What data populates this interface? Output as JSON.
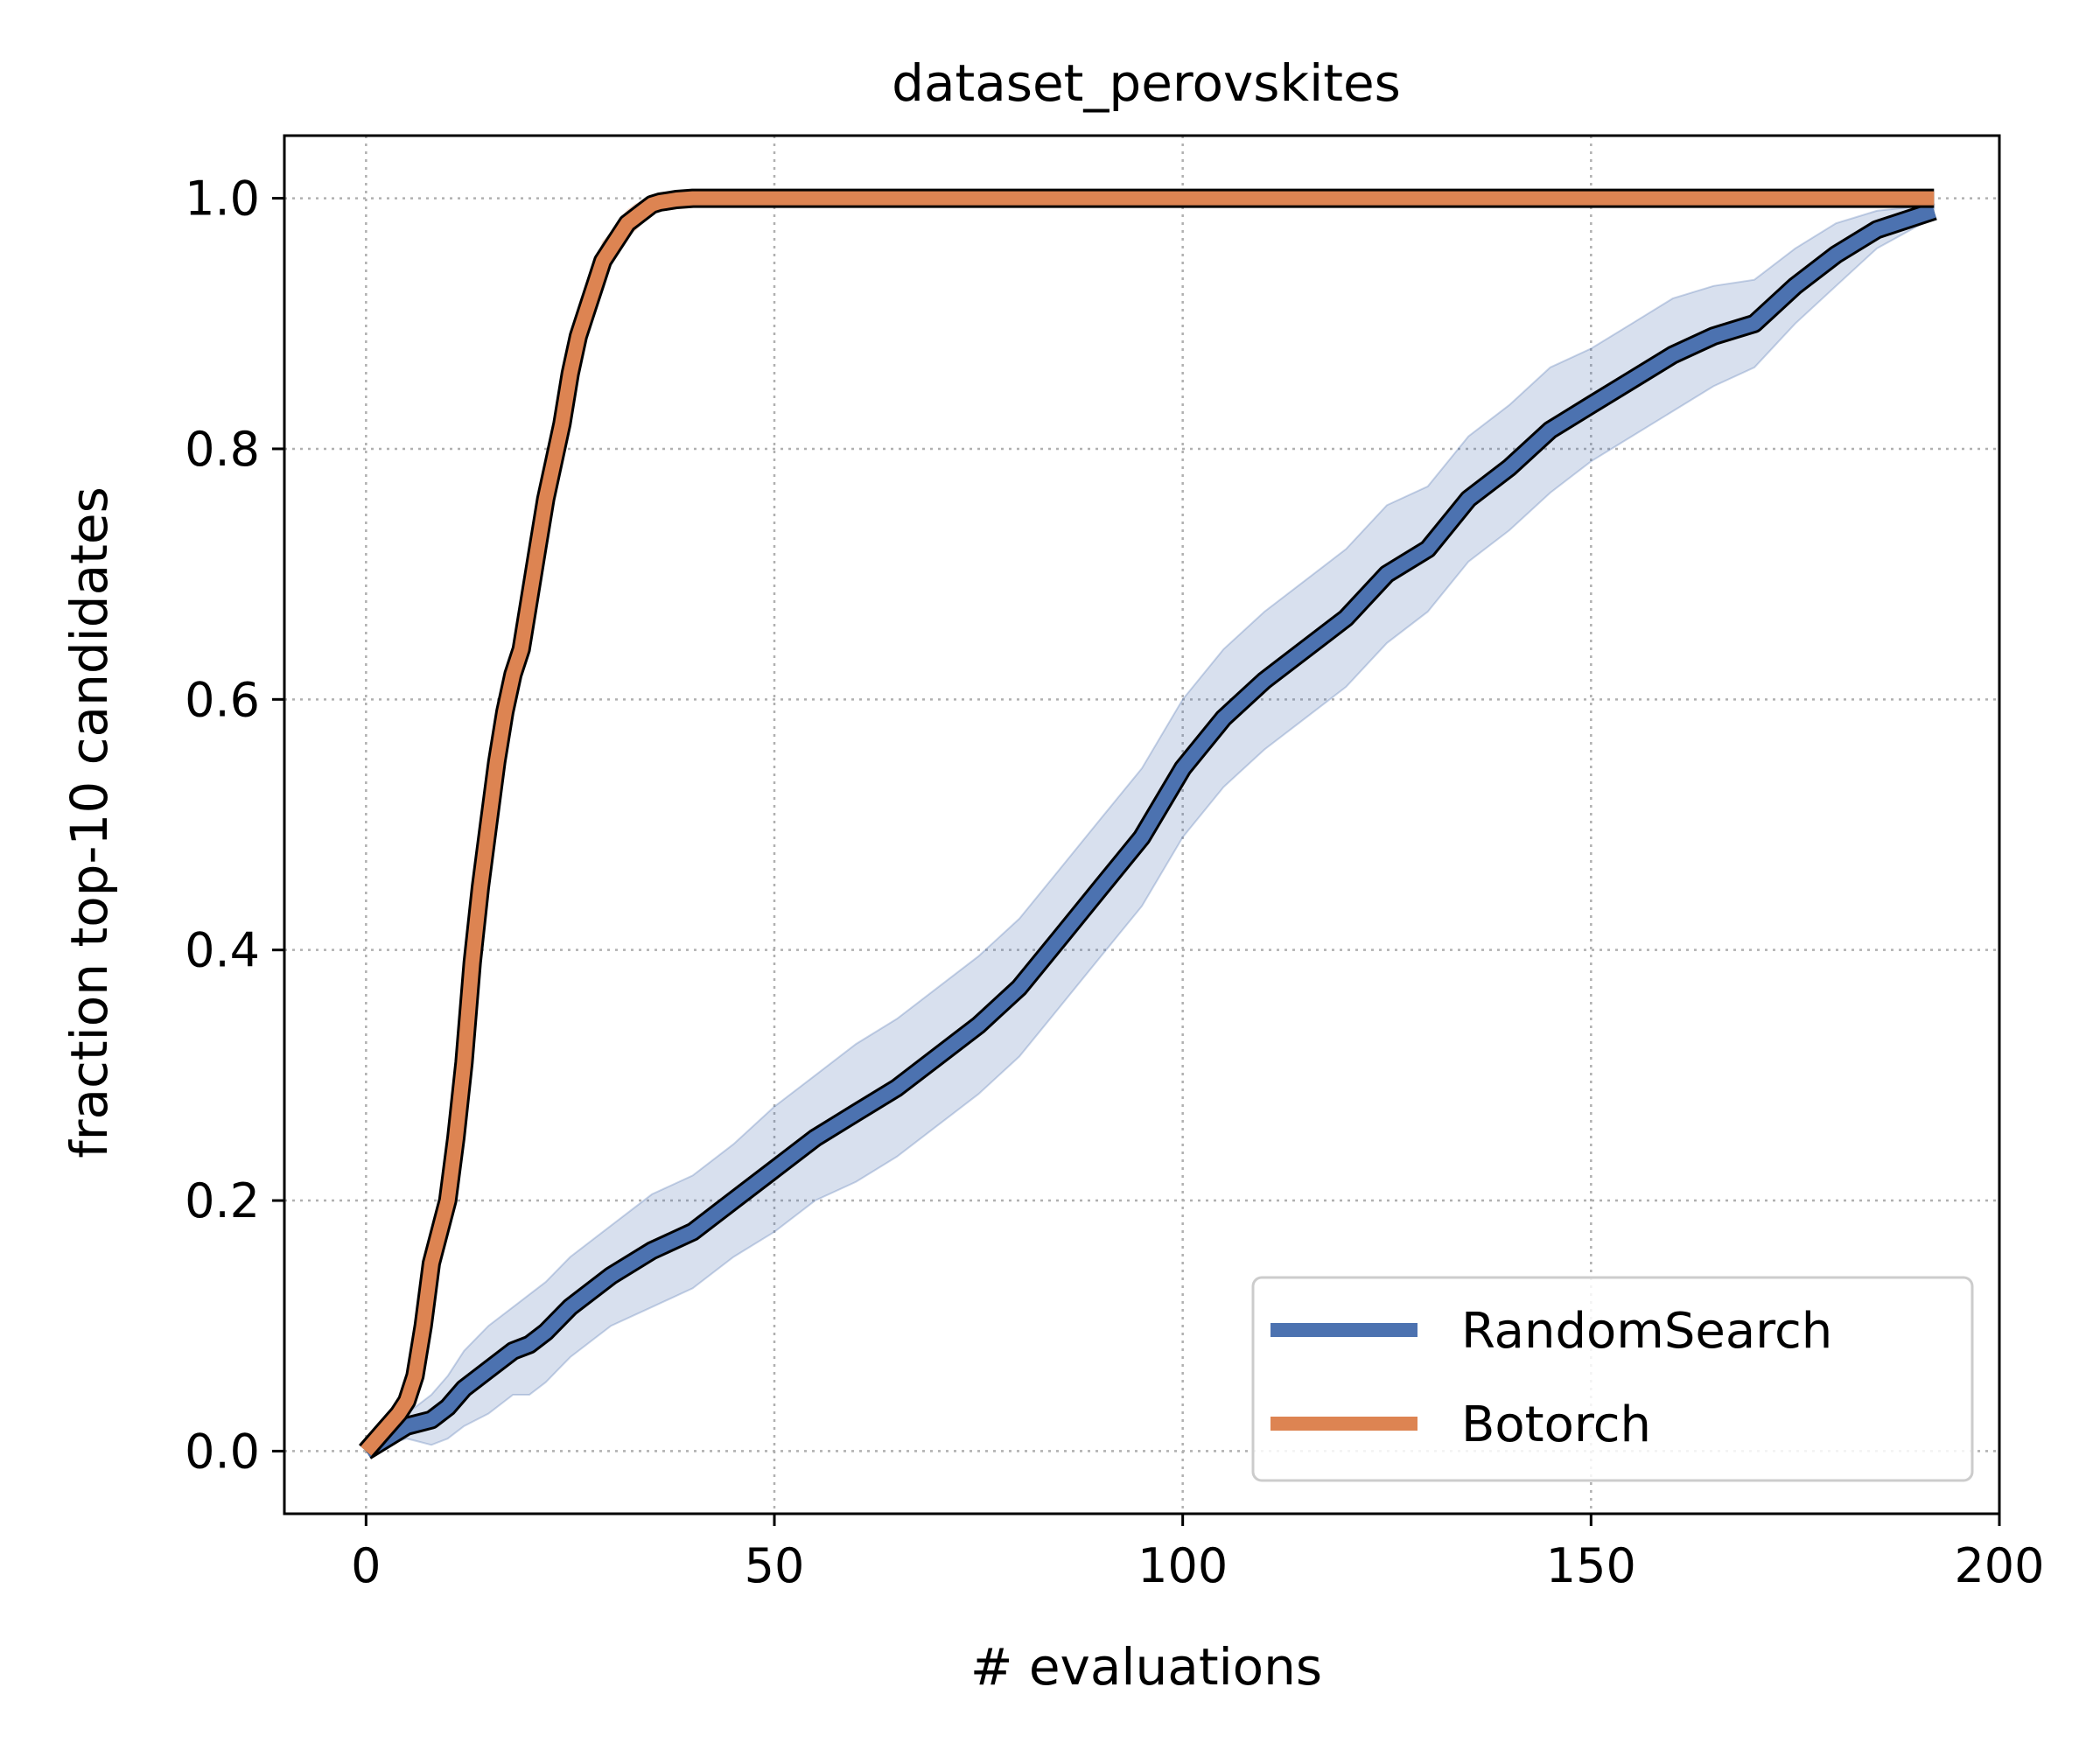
{
  "chart_data": {
    "type": "line",
    "title": "dataset_perovskites",
    "xlabel": "# evaluations",
    "ylabel": "fraction top-10 candidates",
    "xlim": [
      -10,
      200
    ],
    "ylim": [
      -0.05,
      1.05
    ],
    "xticks": [
      0,
      50,
      100,
      150,
      200
    ],
    "yticks": [
      0.0,
      0.2,
      0.4,
      0.6,
      0.8,
      1.0
    ],
    "xtick_labels": [
      "0",
      "50",
      "100",
      "150",
      "200"
    ],
    "ytick_labels": [
      "0.0",
      "0.2",
      "0.4",
      "0.6",
      "0.8",
      "1.0"
    ],
    "grid": true,
    "legend_position": "lower-right",
    "series": [
      {
        "name": "RandomSearch",
        "color": "#4c72b0",
        "x": [
          0,
          5,
          8,
          10,
          12,
          15,
          18,
          20,
          22,
          25,
          30,
          35,
          40,
          45,
          50,
          55,
          60,
          65,
          70,
          75,
          80,
          85,
          90,
          95,
          100,
          105,
          110,
          115,
          120,
          125,
          130,
          135,
          140,
          145,
          150,
          155,
          160,
          165,
          170,
          175,
          180,
          185,
          192
        ],
        "y": [
          0.0,
          0.02,
          0.025,
          0.035,
          0.05,
          0.065,
          0.08,
          0.085,
          0.095,
          0.115,
          0.14,
          0.16,
          0.175,
          0.2,
          0.225,
          0.25,
          0.27,
          0.29,
          0.315,
          0.34,
          0.37,
          0.41,
          0.45,
          0.49,
          0.545,
          0.585,
          0.615,
          0.64,
          0.665,
          0.7,
          0.72,
          0.76,
          0.785,
          0.815,
          0.835,
          0.855,
          0.875,
          0.89,
          0.9,
          0.93,
          0.955,
          0.975,
          0.99
        ],
        "band_width": [
          0.0,
          0.01,
          0.02,
          0.025,
          0.03,
          0.035,
          0.035,
          0.04,
          0.04,
          0.04,
          0.04,
          0.045,
          0.045,
          0.045,
          0.05,
          0.05,
          0.055,
          0.055,
          0.055,
          0.055,
          0.055,
          0.055,
          0.055,
          0.055,
          0.055,
          0.055,
          0.055,
          0.055,
          0.055,
          0.055,
          0.05,
          0.05,
          0.05,
          0.05,
          0.045,
          0.045,
          0.045,
          0.04,
          0.035,
          0.03,
          0.025,
          0.015,
          0.005
        ]
      },
      {
        "name": "Botorch",
        "color": "#dd8452",
        "x": [
          0,
          2,
          4,
          5,
          6,
          7,
          8,
          10,
          11,
          12,
          13,
          14,
          15,
          16,
          17,
          18,
          19,
          20,
          21,
          22,
          23,
          24,
          25,
          26,
          27,
          28,
          29,
          30,
          31,
          32,
          33,
          34,
          35,
          36,
          37,
          38,
          40,
          60,
          100,
          150,
          192
        ],
        "y": [
          0.0,
          0.015,
          0.03,
          0.04,
          0.06,
          0.1,
          0.15,
          0.2,
          0.25,
          0.31,
          0.39,
          0.45,
          0.5,
          0.55,
          0.59,
          0.62,
          0.64,
          0.68,
          0.72,
          0.76,
          0.79,
          0.82,
          0.86,
          0.89,
          0.91,
          0.93,
          0.95,
          0.96,
          0.97,
          0.98,
          0.985,
          0.99,
          0.995,
          0.997,
          0.998,
          0.999,
          1.0,
          1.0,
          1.0,
          1.0,
          1.0
        ],
        "band_width": [
          0.0,
          0.005,
          0.01,
          0.01,
          0.012,
          0.015,
          0.015,
          0.015,
          0.015,
          0.015,
          0.015,
          0.015,
          0.015,
          0.015,
          0.015,
          0.015,
          0.015,
          0.015,
          0.015,
          0.015,
          0.015,
          0.015,
          0.015,
          0.015,
          0.015,
          0.015,
          0.015,
          0.012,
          0.012,
          0.01,
          0.01,
          0.008,
          0.006,
          0.004,
          0.003,
          0.002,
          0.0,
          0.0,
          0.0,
          0.0,
          0.0
        ]
      }
    ]
  }
}
